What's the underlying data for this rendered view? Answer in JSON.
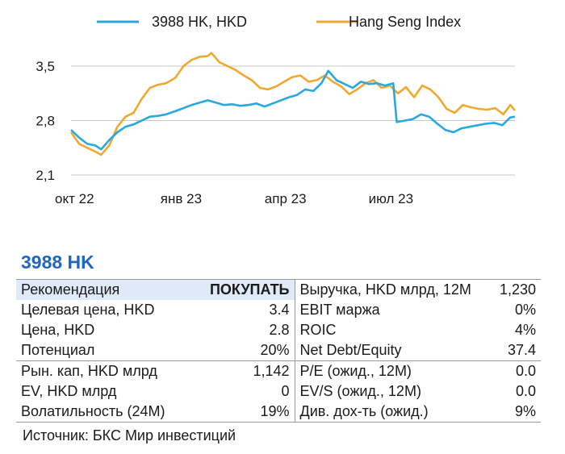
{
  "chart_data": {
    "type": "line",
    "title": "",
    "xlabel": "",
    "ylabel": "",
    "ylim": [
      2.1,
      3.7
    ],
    "yticks": [
      "2,1",
      "2,8",
      "3,5"
    ],
    "xticks": [
      "окт 22",
      "янв 23",
      "апр 23",
      "июл 23"
    ],
    "legend_position": "top",
    "grid": "horizontal",
    "series": [
      {
        "name": "3988 HK, HKD",
        "color": "#29a8e0",
        "points": [
          [
            "2022-09-28",
            2.68
          ],
          [
            "2022-10-05",
            2.58
          ],
          [
            "2022-10-12",
            2.5
          ],
          [
            "2022-10-19",
            2.48
          ],
          [
            "2022-10-24",
            2.43
          ],
          [
            "2022-10-31",
            2.55
          ],
          [
            "2022-11-07",
            2.65
          ],
          [
            "2022-11-14",
            2.72
          ],
          [
            "2022-11-21",
            2.75
          ],
          [
            "2022-11-28",
            2.8
          ],
          [
            "2022-12-05",
            2.85
          ],
          [
            "2022-12-12",
            2.86
          ],
          [
            "2022-12-19",
            2.88
          ],
          [
            "2022-12-27",
            2.92
          ],
          [
            "2023-01-03",
            2.96
          ],
          [
            "2023-01-10",
            3.0
          ],
          [
            "2023-01-17",
            3.03
          ],
          [
            "2023-01-24",
            3.06
          ],
          [
            "2023-01-31",
            3.03
          ],
          [
            "2023-02-07",
            3.0
          ],
          [
            "2023-02-14",
            3.01
          ],
          [
            "2023-02-21",
            2.99
          ],
          [
            "2023-02-28",
            3.0
          ],
          [
            "2023-03-07",
            3.02
          ],
          [
            "2023-03-14",
            2.98
          ],
          [
            "2023-03-21",
            3.02
          ],
          [
            "2023-03-28",
            3.06
          ],
          [
            "2023-04-04",
            3.1
          ],
          [
            "2023-04-11",
            3.13
          ],
          [
            "2023-04-18",
            3.2
          ],
          [
            "2023-04-25",
            3.18
          ],
          [
            "2023-05-02",
            3.28
          ],
          [
            "2023-05-08",
            3.44
          ],
          [
            "2023-05-15",
            3.32
          ],
          [
            "2023-05-22",
            3.27
          ],
          [
            "2023-05-29",
            3.22
          ],
          [
            "2023-06-05",
            3.3
          ],
          [
            "2023-06-12",
            3.27
          ],
          [
            "2023-06-19",
            3.28
          ],
          [
            "2023-06-26",
            3.25
          ],
          [
            "2023-07-03",
            3.28
          ],
          [
            "2023-07-06",
            2.78
          ],
          [
            "2023-07-13",
            2.8
          ],
          [
            "2023-07-20",
            2.82
          ],
          [
            "2023-07-27",
            2.88
          ],
          [
            "2023-08-03",
            2.85
          ],
          [
            "2023-08-10",
            2.76
          ],
          [
            "2023-08-17",
            2.68
          ],
          [
            "2023-08-24",
            2.65
          ],
          [
            "2023-08-31",
            2.7
          ],
          [
            "2023-09-07",
            2.72
          ],
          [
            "2023-09-14",
            2.74
          ],
          [
            "2023-09-21",
            2.76
          ],
          [
            "2023-09-28",
            2.77
          ],
          [
            "2023-10-05",
            2.74
          ],
          [
            "2023-10-12",
            2.84
          ],
          [
            "2023-10-16",
            2.85
          ]
        ]
      },
      {
        "name": "Hang Seng Index",
        "color": "#f0a830",
        "points": [
          [
            "2022-09-28",
            2.65
          ],
          [
            "2022-10-05",
            2.5
          ],
          [
            "2022-10-12",
            2.45
          ],
          [
            "2022-10-19",
            2.4
          ],
          [
            "2022-10-24",
            2.36
          ],
          [
            "2022-10-31",
            2.48
          ],
          [
            "2022-11-07",
            2.72
          ],
          [
            "2022-11-14",
            2.85
          ],
          [
            "2022-11-21",
            2.9
          ],
          [
            "2022-11-28",
            3.08
          ],
          [
            "2022-12-05",
            3.22
          ],
          [
            "2022-12-12",
            3.26
          ],
          [
            "2022-12-19",
            3.28
          ],
          [
            "2022-12-27",
            3.35
          ],
          [
            "2023-01-03",
            3.5
          ],
          [
            "2023-01-10",
            3.58
          ],
          [
            "2023-01-17",
            3.62
          ],
          [
            "2023-01-24",
            3.63
          ],
          [
            "2023-01-27",
            3.67
          ],
          [
            "2023-02-03",
            3.55
          ],
          [
            "2023-02-10",
            3.5
          ],
          [
            "2023-02-17",
            3.45
          ],
          [
            "2023-02-24",
            3.38
          ],
          [
            "2023-03-03",
            3.32
          ],
          [
            "2023-03-10",
            3.22
          ],
          [
            "2023-03-17",
            3.2
          ],
          [
            "2023-03-24",
            3.24
          ],
          [
            "2023-03-31",
            3.3
          ],
          [
            "2023-04-07",
            3.36
          ],
          [
            "2023-04-14",
            3.38
          ],
          [
            "2023-04-21",
            3.3
          ],
          [
            "2023-04-28",
            3.32
          ],
          [
            "2023-05-05",
            3.38
          ],
          [
            "2023-05-12",
            3.3
          ],
          [
            "2023-05-19",
            3.24
          ],
          [
            "2023-05-26",
            3.14
          ],
          [
            "2023-06-02",
            3.2
          ],
          [
            "2023-06-09",
            3.28
          ],
          [
            "2023-06-16",
            3.32
          ],
          [
            "2023-06-23",
            3.22
          ],
          [
            "2023-06-30",
            3.25
          ],
          [
            "2023-07-07",
            3.15
          ],
          [
            "2023-07-14",
            3.23
          ],
          [
            "2023-07-21",
            3.1
          ],
          [
            "2023-07-28",
            3.25
          ],
          [
            "2023-08-04",
            3.2
          ],
          [
            "2023-08-11",
            3.1
          ],
          [
            "2023-08-18",
            2.95
          ],
          [
            "2023-08-25",
            2.9
          ],
          [
            "2023-09-01",
            3.0
          ],
          [
            "2023-09-08",
            2.97
          ],
          [
            "2023-09-15",
            2.95
          ],
          [
            "2023-09-22",
            2.94
          ],
          [
            "2023-09-29",
            2.96
          ],
          [
            "2023-10-06",
            2.88
          ],
          [
            "2023-10-12",
            3.0
          ],
          [
            "2023-10-16",
            2.93
          ]
        ]
      }
    ]
  },
  "summary": {
    "ticker": "3988 HK",
    "rows": [
      {
        "group": "top",
        "left_label": "Рекомендация",
        "left_value": "ПОКУПАТЬ",
        "right_label": "Выручка, HKD млрд, 12M",
        "right_value": "1,230"
      },
      {
        "group": "",
        "left_label": "Целевая цена, HKD",
        "left_value": "3.4",
        "right_label": "EBIT маржа",
        "right_value": "0%"
      },
      {
        "group": "",
        "left_label": "Цена, HKD",
        "left_value": "2.8",
        "right_label": "ROIC",
        "right_value": "4%"
      },
      {
        "group": "",
        "left_label": "Потенциал",
        "left_value": "20%",
        "right_label": "Net Debt/Equity",
        "right_value": "37.4"
      },
      {
        "group": "mid",
        "left_label": "Рын. кап, HKD млрд",
        "left_value": "1,142",
        "right_label": "P/E (ожид., 12M)",
        "right_value": "0.0"
      },
      {
        "group": "",
        "left_label": "EV, HKD млрд",
        "left_value": "0",
        "right_label": "EV/S (ожид., 12M)",
        "right_value": "0.0"
      },
      {
        "group": "bot",
        "left_label": "Волатильность (24M)",
        "left_value": "19%",
        "right_label": "Див. дох-ть (ожид.)",
        "right_value": "9%"
      }
    ],
    "source": "Источник: БКС Мир инвестиций"
  }
}
